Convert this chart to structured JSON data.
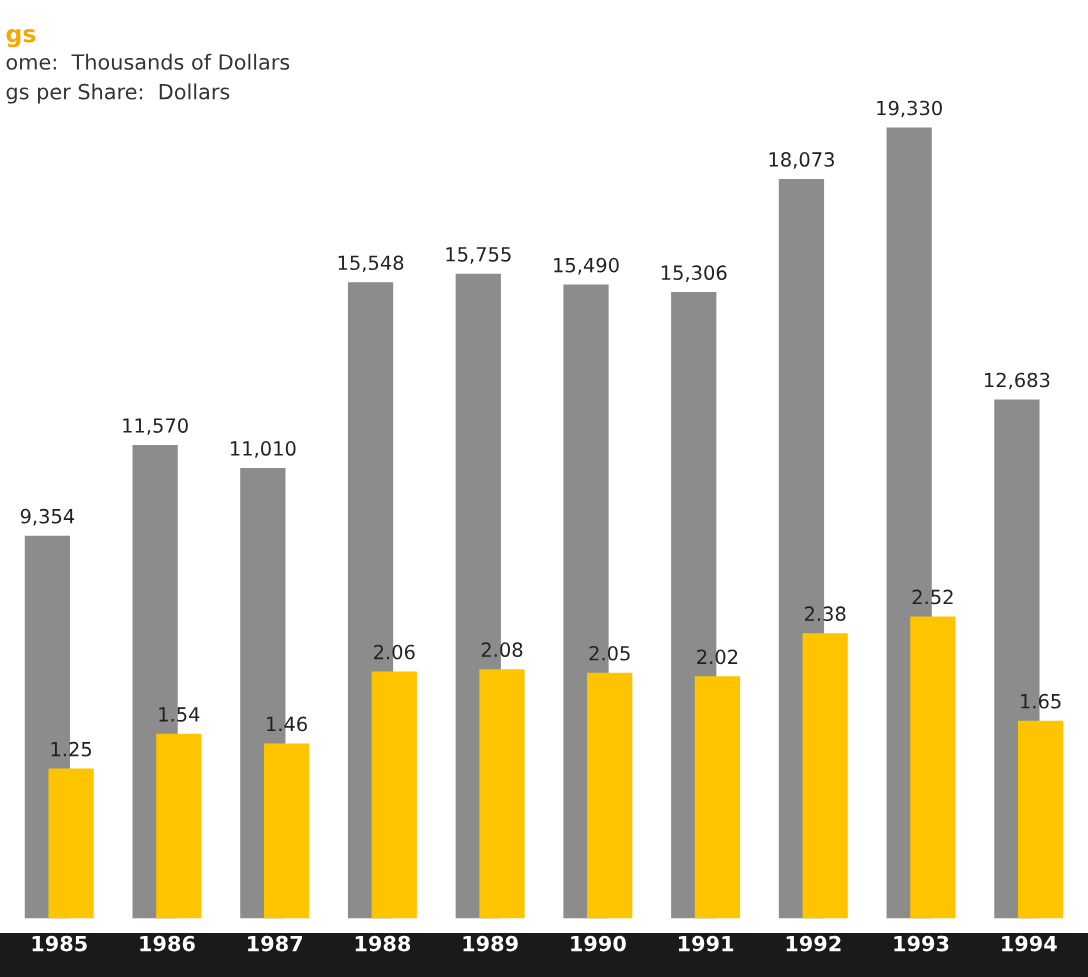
{
  "chart_data": {
    "type": "bar",
    "title": "gs",
    "subtitle": "ome:  Thousands of Dollars\ngs per Share:  Dollars",
    "categories": [
      "1985",
      "1986",
      "1987",
      "1988",
      "1989",
      "1990",
      "1991",
      "1992",
      "1993",
      "1994"
    ],
    "series": [
      {
        "color": "#8c8c8c",
        "values": [
          9354,
          11570,
          11010,
          15548,
          15755,
          15490,
          15306,
          18073,
          19330,
          12683
        ],
        "value_labels": [
          "9,354",
          "11,570",
          "11,010",
          "15,548",
          "15,755",
          "15,490",
          "15,306",
          "18,073",
          "19,330",
          "12,683"
        ]
      },
      {
        "color": "#ffc400",
        "axis": "y2",
        "values": [
          1.25,
          1.54,
          1.46,
          2.06,
          2.08,
          2.05,
          2.02,
          2.38,
          2.52,
          1.65
        ],
        "value_labels": [
          "1.25",
          "1.54",
          "1.46",
          "2.06",
          "2.08",
          "2.05",
          "2.02",
          "2.38",
          "2.52",
          "1.65"
        ]
      }
    ],
    "tick_labels": "x"
  }
}
